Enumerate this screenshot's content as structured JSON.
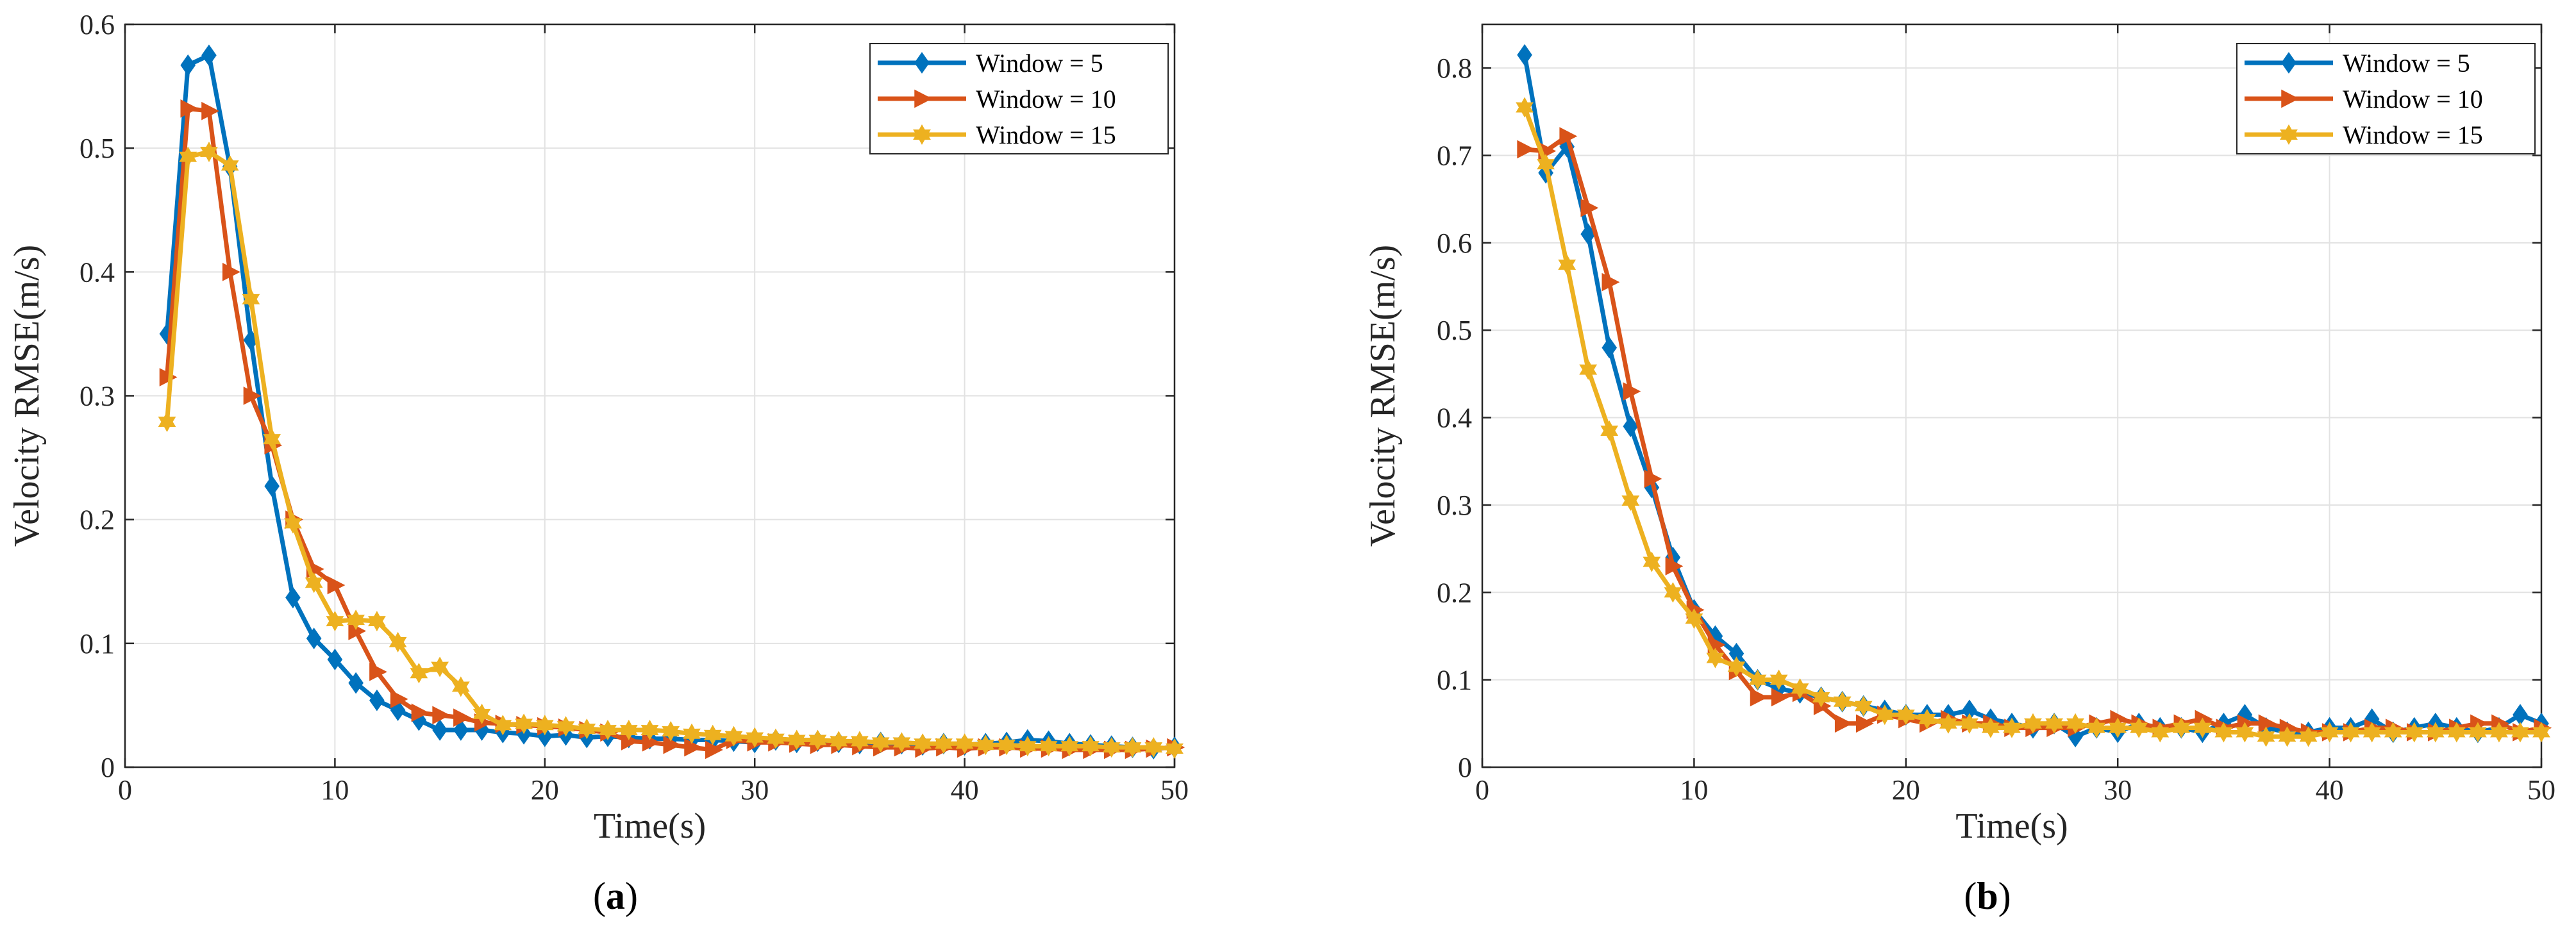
{
  "chart_data": [
    {
      "type": "line",
      "caption_letter": "a",
      "xlabel": "Time(s)",
      "ylabel": "Velocity RMSE(m/s)",
      "xlim": [
        0,
        50
      ],
      "ylim": [
        0,
        0.6
      ],
      "xticks": [
        0,
        10,
        20,
        30,
        40,
        50
      ],
      "yticks": [
        0,
        0.1,
        0.2,
        0.3,
        0.4,
        0.5,
        0.6
      ],
      "xtick_labels": [
        "0",
        "10",
        "20",
        "30",
        "40",
        "50"
      ],
      "ytick_labels": [
        "0",
        "0.1",
        "0.2",
        "0.3",
        "0.4",
        "0.5",
        "0.6"
      ],
      "grid": true,
      "legend_position": "top-right",
      "x": [
        2,
        3,
        4,
        5,
        6,
        7,
        8,
        9,
        10,
        11,
        12,
        13,
        14,
        15,
        16,
        17,
        18,
        19,
        20,
        21,
        22,
        23,
        24,
        25,
        26,
        27,
        28,
        29,
        30,
        31,
        32,
        33,
        34,
        35,
        36,
        37,
        38,
        39,
        40,
        41,
        42,
        43,
        44,
        45,
        46,
        47,
        48,
        49,
        50
      ],
      "series": [
        {
          "name": "Window = 5",
          "color": "#0072BD",
          "marker": "diamond",
          "values": [
            0.35,
            0.567,
            0.575,
            0.485,
            0.345,
            0.227,
            0.137,
            0.104,
            0.087,
            0.068,
            0.054,
            0.046,
            0.038,
            0.03,
            0.03,
            0.03,
            0.028,
            0.027,
            0.025,
            0.026,
            0.024,
            0.025,
            0.024,
            0.023,
            0.023,
            0.022,
            0.022,
            0.021,
            0.02,
            0.022,
            0.02,
            0.021,
            0.02,
            0.019,
            0.02,
            0.019,
            0.018,
            0.019,
            0.018,
            0.019,
            0.02,
            0.022,
            0.021,
            0.019,
            0.018,
            0.017,
            0.016,
            0.015,
            0.016
          ]
        },
        {
          "name": "Window = 10",
          "color": "#D95319",
          "marker": "triangle-right",
          "values": [
            0.315,
            0.532,
            0.53,
            0.4,
            0.3,
            0.26,
            0.2,
            0.16,
            0.147,
            0.11,
            0.077,
            0.055,
            0.044,
            0.042,
            0.04,
            0.036,
            0.035,
            0.034,
            0.033,
            0.032,
            0.03,
            0.028,
            0.021,
            0.02,
            0.018,
            0.016,
            0.014,
            0.022,
            0.02,
            0.02,
            0.019,
            0.018,
            0.018,
            0.017,
            0.016,
            0.016,
            0.015,
            0.016,
            0.015,
            0.016,
            0.016,
            0.015,
            0.015,
            0.014,
            0.014,
            0.014,
            0.014,
            0.015,
            0.016
          ]
        },
        {
          "name": "Window = 15",
          "color": "#EDB120",
          "marker": "hexagram",
          "values": [
            0.279,
            0.493,
            0.497,
            0.486,
            0.378,
            0.265,
            0.197,
            0.149,
            0.118,
            0.119,
            0.118,
            0.101,
            0.076,
            0.081,
            0.065,
            0.043,
            0.034,
            0.035,
            0.034,
            0.033,
            0.031,
            0.03,
            0.03,
            0.03,
            0.029,
            0.027,
            0.026,
            0.025,
            0.024,
            0.023,
            0.022,
            0.022,
            0.021,
            0.021,
            0.02,
            0.02,
            0.019,
            0.019,
            0.019,
            0.018,
            0.018,
            0.017,
            0.017,
            0.017,
            0.017,
            0.016,
            0.016,
            0.016,
            0.015
          ]
        }
      ]
    },
    {
      "type": "line",
      "caption_letter": "b",
      "xlabel": "Time(s)",
      "ylabel": "Velocity RMSE(m/s)",
      "xlim": [
        0,
        50
      ],
      "ylim": [
        0,
        0.85
      ],
      "xticks": [
        0,
        10,
        20,
        30,
        40,
        50
      ],
      "yticks": [
        0,
        0.1,
        0.2,
        0.3,
        0.4,
        0.5,
        0.6,
        0.7,
        0.8
      ],
      "xtick_labels": [
        "0",
        "10",
        "20",
        "30",
        "40",
        "50"
      ],
      "ytick_labels": [
        "0",
        "0.1",
        "0.2",
        "0.3",
        "0.4",
        "0.5",
        "0.6",
        "0.7",
        "0.8"
      ],
      "grid": true,
      "legend_position": "top-right",
      "x": [
        2,
        3,
        4,
        5,
        6,
        7,
        8,
        9,
        10,
        11,
        12,
        13,
        14,
        15,
        16,
        17,
        18,
        19,
        20,
        21,
        22,
        23,
        24,
        25,
        26,
        27,
        28,
        29,
        30,
        31,
        32,
        33,
        34,
        35,
        36,
        37,
        38,
        39,
        40,
        41,
        42,
        43,
        44,
        45,
        46,
        47,
        48,
        49,
        50
      ],
      "series": [
        {
          "name": "Window = 5",
          "color": "#0072BD",
          "marker": "diamond",
          "values": [
            0.815,
            0.68,
            0.71,
            0.61,
            0.48,
            0.39,
            0.32,
            0.24,
            0.18,
            0.15,
            0.13,
            0.1,
            0.09,
            0.085,
            0.08,
            0.075,
            0.07,
            0.065,
            0.06,
            0.06,
            0.06,
            0.065,
            0.055,
            0.05,
            0.045,
            0.05,
            0.035,
            0.045,
            0.04,
            0.05,
            0.045,
            0.045,
            0.04,
            0.05,
            0.06,
            0.045,
            0.04,
            0.04,
            0.045,
            0.045,
            0.055,
            0.04,
            0.045,
            0.05,
            0.045,
            0.04,
            0.045,
            0.06,
            0.05
          ]
        },
        {
          "name": "Window = 10",
          "color": "#D95319",
          "marker": "triangle-right",
          "values": [
            0.707,
            0.705,
            0.722,
            0.64,
            0.555,
            0.43,
            0.33,
            0.23,
            0.18,
            0.14,
            0.11,
            0.08,
            0.08,
            0.085,
            0.07,
            0.05,
            0.05,
            0.06,
            0.055,
            0.05,
            0.055,
            0.05,
            0.05,
            0.045,
            0.045,
            0.045,
            0.045,
            0.05,
            0.055,
            0.05,
            0.045,
            0.05,
            0.055,
            0.045,
            0.05,
            0.05,
            0.045,
            0.04,
            0.04,
            0.04,
            0.045,
            0.045,
            0.04,
            0.04,
            0.045,
            0.05,
            0.05,
            0.04,
            0.045
          ]
        },
        {
          "name": "Window = 15",
          "color": "#EDB120",
          "marker": "hexagram",
          "values": [
            0.755,
            0.69,
            0.575,
            0.455,
            0.385,
            0.305,
            0.235,
            0.2,
            0.17,
            0.125,
            0.115,
            0.1,
            0.1,
            0.09,
            0.08,
            0.075,
            0.07,
            0.06,
            0.06,
            0.055,
            0.05,
            0.05,
            0.045,
            0.045,
            0.05,
            0.05,
            0.05,
            0.045,
            0.045,
            0.045,
            0.04,
            0.045,
            0.045,
            0.04,
            0.04,
            0.035,
            0.035,
            0.035,
            0.04,
            0.04,
            0.04,
            0.04,
            0.04,
            0.04,
            0.04,
            0.04,
            0.04,
            0.04,
            0.04
          ]
        }
      ]
    }
  ]
}
